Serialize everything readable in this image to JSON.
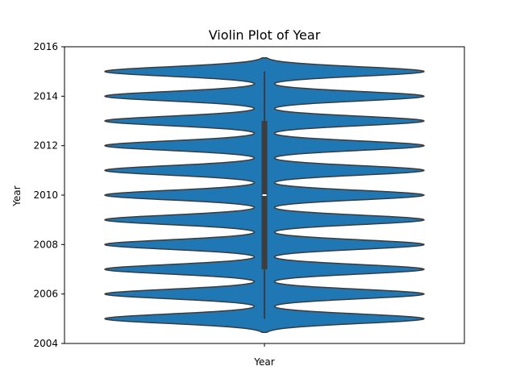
{
  "chart_data": {
    "type": "violin",
    "title": "Violin Plot of Year",
    "xlabel": "",
    "ylabel": "Year",
    "categories": [
      "Year"
    ],
    "ylim": [
      2004,
      2016
    ],
    "yticks": [
      "2004",
      "2006",
      "2008",
      "2010",
      "2012",
      "2014",
      "2016"
    ],
    "values": [
      2005,
      2006,
      2007,
      2008,
      2009,
      2010,
      2011,
      2012,
      2013,
      2014,
      2015
    ],
    "kde_extent": [
      2004.45,
      2015.55
    ],
    "box": {
      "min": 2005,
      "q1": 2007,
      "median": 2010,
      "q3": 2013,
      "max": 2015
    },
    "fill_color": "#1f77b4",
    "edge_color": "#3b3b3b",
    "box_color": "#3d3d3d",
    "median_color": "#ffffff",
    "grid": false
  }
}
